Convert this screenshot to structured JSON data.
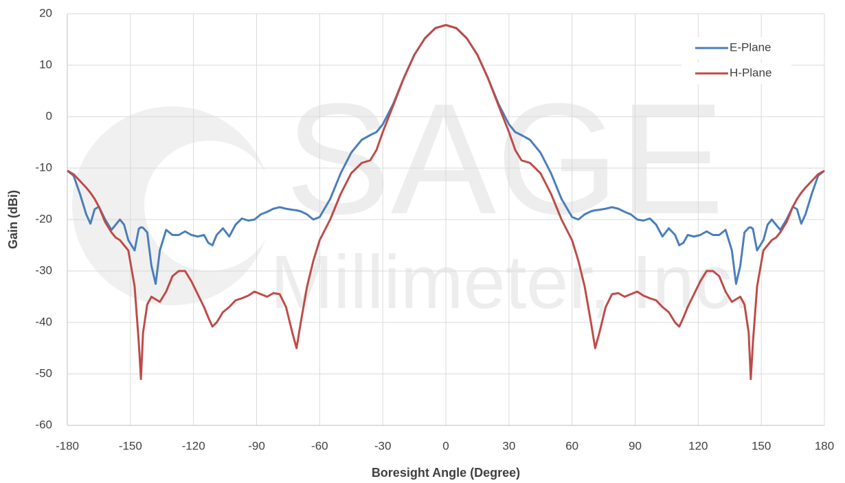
{
  "chart_data": {
    "type": "line",
    "x_label": "Boresight Angle (Degree)",
    "y_label": "Gain (dBi)",
    "watermark": [
      "SAGE",
      "Millimeter, Inc."
    ],
    "x": [
      -180,
      -177,
      -174,
      -171,
      -169,
      -167,
      -165,
      -162,
      -159,
      -157,
      -155,
      -153,
      -151,
      -148,
      -146,
      -145,
      -144,
      -142,
      -140,
      -138,
      -136,
      -133,
      -130,
      -127,
      -124,
      -121,
      -118,
      -115,
      -113,
      -111,
      -109,
      -106,
      -103,
      -100,
      -97,
      -94,
      -91,
      -88,
      -85,
      -82,
      -79,
      -76,
      -73,
      -71,
      -69,
      -66,
      -63,
      -60,
      -55,
      -50,
      -45,
      -40,
      -36,
      -33,
      -30,
      -25,
      -20,
      -15,
      -10,
      -5,
      0,
      5,
      10,
      15,
      20,
      25,
      30,
      33,
      36,
      40,
      45,
      50,
      55,
      60,
      63,
      66,
      69,
      71,
      73,
      76,
      79,
      82,
      85,
      88,
      91,
      94,
      97,
      100,
      103,
      106,
      109,
      111,
      113,
      115,
      118,
      121,
      124,
      127,
      130,
      133,
      136,
      138,
      140,
      142,
      144,
      145,
      146,
      148,
      151,
      153,
      155,
      157,
      159,
      162,
      165,
      167,
      169,
      171,
      174,
      177,
      180
    ],
    "series": [
      {
        "name": "E-Plane",
        "color": "#4a7ebb",
        "values": [
          -10.5,
          -11.5,
          -15,
          -19,
          -20.8,
          -18,
          -17.5,
          -20,
          -22,
          -21,
          -20,
          -21,
          -24,
          -26,
          -21.8,
          -21.5,
          -21.6,
          -22.5,
          -29,
          -32.5,
          -26,
          -22,
          -23,
          -23,
          -22.3,
          -23,
          -23.3,
          -23,
          -24.5,
          -25,
          -23,
          -21.7,
          -23.3,
          -21,
          -19.8,
          -20.2,
          -20,
          -19,
          -18.5,
          -17.9,
          -17.6,
          -17.9,
          -18.1,
          -18.2,
          -18.4,
          -19,
          -20,
          -19.5,
          -16,
          -11,
          -7,
          -4.5,
          -3.6,
          -3,
          -1.5,
          2.5,
          7.5,
          12,
          15.2,
          17.2,
          17.8,
          17.2,
          15.2,
          12,
          7.5,
          2.5,
          -1.5,
          -3,
          -3.6,
          -4.5,
          -7,
          -11,
          -16,
          -19.5,
          -20,
          -19,
          -18.4,
          -18.2,
          -18.1,
          -17.9,
          -17.6,
          -17.9,
          -18.5,
          -19,
          -20,
          -20.2,
          -19.8,
          -21,
          -23.3,
          -21.7,
          -23,
          -25,
          -24.5,
          -23,
          -23.3,
          -23,
          -22.3,
          -23,
          -23,
          -22,
          -26,
          -32.5,
          -29,
          -22.5,
          -21.6,
          -21.5,
          -21.8,
          -26,
          -24,
          -21,
          -20,
          -21,
          -22,
          -20,
          -17.5,
          -18,
          -20.8,
          -19,
          -15,
          -11.5,
          -10.5
        ]
      },
      {
        "name": "H-Plane",
        "color": "#be4b48",
        "values": [
          -10.5,
          -11.2,
          -12.5,
          -13.8,
          -14.8,
          -16,
          -17.5,
          -20.5,
          -22.5,
          -23.5,
          -24,
          -25,
          -26,
          -33,
          -44,
          -51,
          -42,
          -36.5,
          -35,
          -35.5,
          -36,
          -34,
          -31,
          -30,
          -30,
          -32,
          -34.5,
          -37,
          -39,
          -40.8,
          -40,
          -38,
          -37,
          -35.7,
          -35.3,
          -34.8,
          -34,
          -34.5,
          -35,
          -34.3,
          -34.5,
          -37,
          -42,
          -45,
          -40,
          -33,
          -28,
          -24,
          -20,
          -15,
          -11,
          -9,
          -8.5,
          -6.5,
          -3,
          2.2,
          7.5,
          12,
          15.2,
          17.2,
          17.8,
          17.2,
          15.2,
          12,
          7.5,
          2.2,
          -3,
          -6.5,
          -8.5,
          -9,
          -11,
          -15,
          -20,
          -24,
          -28,
          -33,
          -40,
          -45,
          -42,
          -37,
          -34.5,
          -34.3,
          -35,
          -34.5,
          -34,
          -34.8,
          -35.3,
          -35.7,
          -37,
          -38,
          -40,
          -40.8,
          -39,
          -37,
          -34.5,
          -32,
          -30,
          -30,
          -31,
          -34,
          -36,
          -35.5,
          -35,
          -36.5,
          -42,
          -51,
          -44,
          -33,
          -26,
          -25,
          -24,
          -23.5,
          -22.5,
          -20.5,
          -17.5,
          -16,
          -14.8,
          -13.8,
          -12.5,
          -11.2,
          -10.5
        ]
      }
    ],
    "xlim": [
      -180,
      180
    ],
    "xticks": [
      -180,
      -150,
      -120,
      -90,
      -60,
      -30,
      0,
      30,
      60,
      90,
      120,
      150,
      180
    ],
    "ylim": [
      -60,
      20
    ],
    "yticks": [
      -60,
      -50,
      -40,
      -30,
      -20,
      -10,
      0,
      10,
      20
    ],
    "grid": true,
    "legend": "upper right"
  }
}
